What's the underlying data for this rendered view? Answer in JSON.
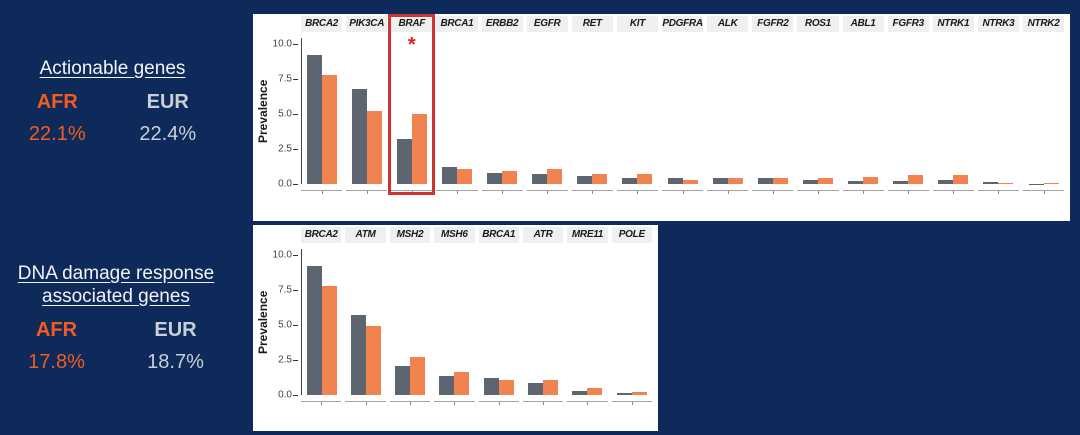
{
  "slide": {
    "background": "#0e2a5a"
  },
  "labels": {
    "actionable": {
      "title": "Actionable genes",
      "group1": "AFR",
      "group2": "EUR",
      "value1": "22.1%",
      "value2": "22.4%"
    },
    "ddr": {
      "title_line1": "DNA damage response",
      "title_line2": "associated genes",
      "group1": "AFR",
      "group2": "EUR",
      "value1": "17.8%",
      "value2": "18.7%"
    }
  },
  "colors": {
    "background": "#0e2a5a",
    "panel": "#ffffff",
    "strip_bg": "#efefef",
    "bar_gray": "#5d6570",
    "bar_orange": "#f08350",
    "highlight_red": "#cf3430",
    "asterisk_red": "#df1f1c",
    "afr_text": "#f25c1f",
    "eur_text": "#c9cfd7",
    "axis_text": "#444444",
    "strip_text": "#1a1a1a"
  },
  "chart_data": [
    {
      "id": "actionable",
      "type": "bar",
      "title": "Actionable genes (faceted by gene)",
      "xlabel": "",
      "ylabel": "Prevalence",
      "ylim": [
        0,
        10.4
      ],
      "yticks": [
        0.0,
        2.5,
        5.0,
        7.5,
        10.0
      ],
      "grid": false,
      "legend": "none",
      "series_colors": [
        "#5d6570",
        "#f08350"
      ],
      "facets": [
        {
          "gene": "BRCA2",
          "values": [
            9.2,
            7.8
          ]
        },
        {
          "gene": "PIK3CA",
          "values": [
            6.8,
            5.2
          ]
        },
        {
          "gene": "BRAF",
          "values": [
            3.2,
            5.0
          ],
          "highlight": true,
          "annotation": "*"
        },
        {
          "gene": "BRCA1",
          "values": [
            1.2,
            1.1
          ]
        },
        {
          "gene": "ERBB2",
          "values": [
            0.8,
            0.9
          ]
        },
        {
          "gene": "EGFR",
          "values": [
            0.7,
            1.05
          ]
        },
        {
          "gene": "RET",
          "values": [
            0.55,
            0.7
          ]
        },
        {
          "gene": "KIT",
          "values": [
            0.45,
            0.7
          ]
        },
        {
          "gene": "PDGFRA",
          "values": [
            0.45,
            0.3
          ]
        },
        {
          "gene": "ALK",
          "values": [
            0.4,
            0.4
          ]
        },
        {
          "gene": "FGFR2",
          "values": [
            0.4,
            0.45
          ]
        },
        {
          "gene": "ROS1",
          "values": [
            0.3,
            0.45
          ]
        },
        {
          "gene": "ABL1",
          "values": [
            0.25,
            0.5
          ]
        },
        {
          "gene": "FGFR3",
          "values": [
            0.25,
            0.65
          ]
        },
        {
          "gene": "NTRK1",
          "values": [
            0.3,
            0.65
          ]
        },
        {
          "gene": "NTRK3",
          "values": [
            0.15,
            0.1
          ]
        },
        {
          "gene": "NTRK2",
          "values": [
            0.03,
            0.05
          ]
        }
      ]
    },
    {
      "id": "ddr",
      "type": "bar",
      "title": "DNA damage response associated genes (faceted by gene)",
      "xlabel": "",
      "ylabel": "Prevalence",
      "ylim": [
        0,
        10.4
      ],
      "yticks": [
        0.0,
        2.5,
        5.0,
        7.5,
        10.0
      ],
      "grid": false,
      "legend": "none",
      "series_colors": [
        "#5d6570",
        "#f08350"
      ],
      "facets": [
        {
          "gene": "BRCA2",
          "values": [
            9.2,
            7.8
          ]
        },
        {
          "gene": "ATM",
          "values": [
            5.7,
            4.9
          ]
        },
        {
          "gene": "MSH2",
          "values": [
            2.05,
            2.7
          ]
        },
        {
          "gene": "MSH6",
          "values": [
            1.35,
            1.65
          ]
        },
        {
          "gene": "BRCA1",
          "values": [
            1.2,
            1.1
          ]
        },
        {
          "gene": "ATR",
          "values": [
            0.85,
            1.05
          ]
        },
        {
          "gene": "MRE11",
          "values": [
            0.3,
            0.5
          ]
        },
        {
          "gene": "POLE",
          "values": [
            0.15,
            0.2
          ]
        }
      ]
    }
  ]
}
